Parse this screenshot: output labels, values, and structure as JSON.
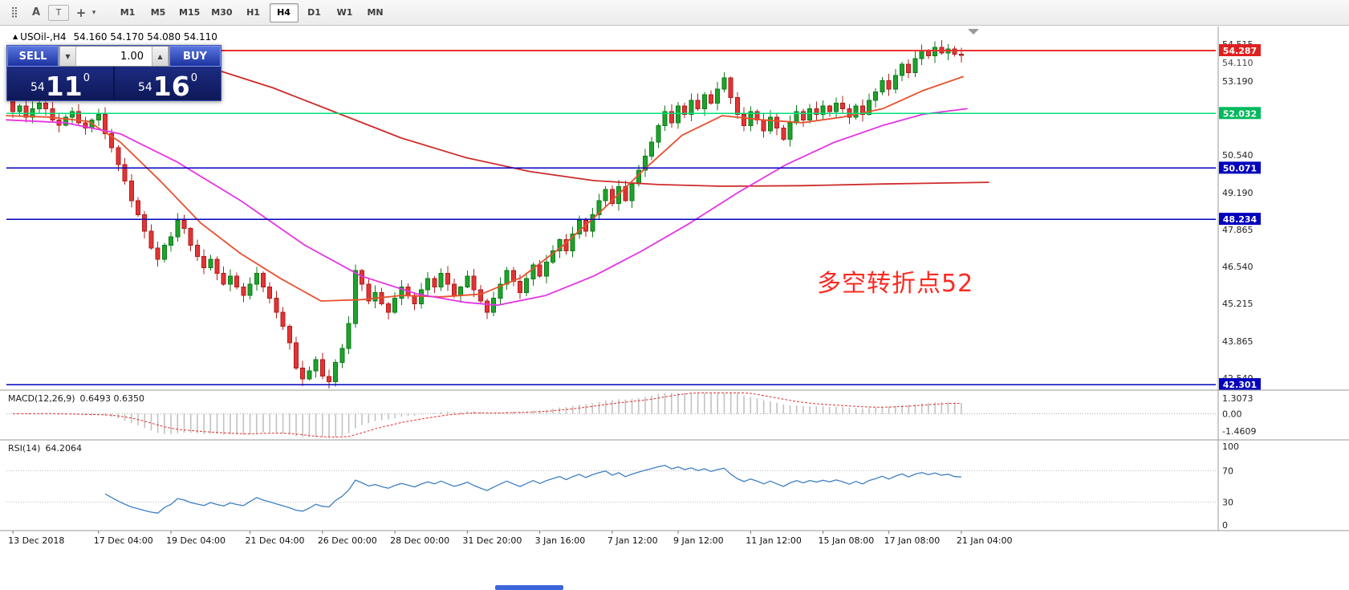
{
  "toolbar": {
    "icons": [
      {
        "name": "indicators-grid-icon",
        "glyph": "⣿"
      },
      {
        "name": "text-label-icon",
        "glyph": "A"
      },
      {
        "name": "text-box-icon",
        "glyph": "T"
      },
      {
        "name": "crosshair-icon",
        "glyph": "+"
      },
      {
        "name": "chevron-down-icon",
        "glyph": "▾"
      }
    ],
    "timeframes": [
      "M1",
      "M5",
      "M15",
      "M30",
      "H1",
      "H4",
      "D1",
      "W1",
      "MN"
    ],
    "active_timeframe": "H4"
  },
  "trade_panel": {
    "sell_label": "SELL",
    "buy_label": "BUY",
    "volume": "1.00",
    "spinner_down": "▼",
    "spinner_up": "▲",
    "sell_price": {
      "prefix": "54",
      "big": "11",
      "sup": "0"
    },
    "buy_price": {
      "prefix": "54",
      "big": "16",
      "sup": "0"
    }
  },
  "chart_data": {
    "type": "candlestick",
    "title": "USOil-,H4",
    "title_triangle": "▲",
    "ohlc_text": "54.160 54.170 54.080 54.110",
    "annotation": {
      "text": "多空转折点52",
      "color": "#fb2a22"
    },
    "bull_color": "#1fa32b",
    "bull_stroke": "#0c7a18",
    "bear_color": "#e23535",
    "bear_stroke": "#b01c1c",
    "closes": [
      52.1,
      52.3,
      51.9,
      52.2,
      52.4,
      52.2,
      51.8,
      51.6,
      51.9,
      52.1,
      51.7,
      51.5,
      51.8,
      52.0,
      51.3,
      50.8,
      50.2,
      49.6,
      48.9,
      48.4,
      47.8,
      47.2,
      46.8,
      47.3,
      47.6,
      48.2,
      47.9,
      47.3,
      46.9,
      46.5,
      46.8,
      46.3,
      45.9,
      46.2,
      45.8,
      45.5,
      45.9,
      46.3,
      45.8,
      45.4,
      44.9,
      44.4,
      43.8,
      42.9,
      42.5,
      42.8,
      43.2,
      42.6,
      42.4,
      43.1,
      43.6,
      44.5,
      46.4,
      45.9,
      45.3,
      45.6,
      45.2,
      44.9,
      45.4,
      45.8,
      45.5,
      45.2,
      45.7,
      46.1,
      45.8,
      46.3,
      45.9,
      45.5,
      45.8,
      46.2,
      45.7,
      45.3,
      44.9,
      45.4,
      45.9,
      46.4,
      46.0,
      45.6,
      46.1,
      46.6,
      46.2,
      46.7,
      47.1,
      47.5,
      47.1,
      47.7,
      48.2,
      47.8,
      48.4,
      48.9,
      49.3,
      48.8,
      49.4,
      48.9,
      49.5,
      50.0,
      50.5,
      51.0,
      51.6,
      52.1,
      51.7,
      52.3,
      52.0,
      52.5,
      52.2,
      52.7,
      52.4,
      52.9,
      53.3,
      52.6,
      52.0,
      51.6,
      52.1,
      51.8,
      51.4,
      51.9,
      51.5,
      51.1,
      51.7,
      52.1,
      51.8,
      52.2,
      52.0,
      52.3,
      52.1,
      52.4,
      52.2,
      51.9,
      52.3,
      52.0,
      52.5,
      52.8,
      53.2,
      52.9,
      53.4,
      53.8,
      53.5,
      54.0,
      54.3,
      54.1,
      54.4,
      54.2,
      54.35,
      54.15,
      54.11
    ],
    "y_axis": {
      "min": 42.19,
      "max": 55.15,
      "ticks": [
        54.515,
        53.19,
        50.54,
        49.19,
        47.865,
        46.54,
        45.215,
        43.865,
        42.54
      ]
    },
    "current_price_label": "54.110",
    "hlines": [
      {
        "price": 54.287,
        "color": "#e8312e",
        "badge": "#e02020",
        "label": "54.287"
      },
      {
        "price": 52.032,
        "color": "#00e17a",
        "badge": "#00b85c",
        "label": "52.032"
      },
      {
        "price": 50.071,
        "color": "#0202bd",
        "badge": "#0202bd",
        "label": "50.071"
      },
      {
        "price": 48.234,
        "color": "#0202bd",
        "badge": "#0202bd",
        "label": "48.234"
      },
      {
        "price": 42.301,
        "color": "#0202bd",
        "badge": "#0202bd",
        "label": "42.301"
      }
    ],
    "ma_lines": [
      {
        "name": "ma-slow-red",
        "color": "#cf2b2b",
        "points": [
          [
            275,
            53.55
          ],
          [
            340,
            52.95
          ],
          [
            420,
            52.05
          ],
          [
            500,
            51.15
          ],
          [
            580,
            50.45
          ],
          [
            660,
            49.95
          ],
          [
            740,
            49.62
          ],
          [
            820,
            49.48
          ],
          [
            900,
            49.42
          ],
          [
            1000,
            49.44
          ],
          [
            1100,
            49.5
          ],
          [
            1232,
            49.56
          ]
        ]
      },
      {
        "name": "ma-fast-orange",
        "color": "#e8512e",
        "points": [
          [
            8,
            51.95
          ],
          [
            60,
            51.9
          ],
          [
            110,
            51.75
          ],
          [
            150,
            51.0
          ],
          [
            200,
            49.6
          ],
          [
            250,
            48.1
          ],
          [
            300,
            47.0
          ],
          [
            350,
            46.1
          ],
          [
            400,
            45.3
          ],
          [
            450,
            45.35
          ],
          [
            500,
            45.5
          ],
          [
            550,
            45.45
          ],
          [
            600,
            45.55
          ],
          [
            650,
            46.15
          ],
          [
            700,
            47.25
          ],
          [
            750,
            48.55
          ],
          [
            800,
            49.95
          ],
          [
            850,
            51.25
          ],
          [
            900,
            51.95
          ],
          [
            950,
            51.8
          ],
          [
            1000,
            51.7
          ],
          [
            1050,
            51.9
          ],
          [
            1100,
            52.2
          ],
          [
            1150,
            52.85
          ],
          [
            1200,
            53.35
          ]
        ]
      },
      {
        "name": "ma-magenta",
        "color": "#e434e4",
        "points": [
          [
            8,
            51.8
          ],
          [
            80,
            51.7
          ],
          [
            150,
            51.3
          ],
          [
            220,
            50.3
          ],
          [
            300,
            48.9
          ],
          [
            380,
            47.3
          ],
          [
            450,
            46.2
          ],
          [
            520,
            45.55
          ],
          [
            580,
            45.25
          ],
          [
            620,
            45.15
          ],
          [
            680,
            45.5
          ],
          [
            740,
            46.2
          ],
          [
            800,
            47.1
          ],
          [
            860,
            48.1
          ],
          [
            920,
            49.2
          ],
          [
            980,
            50.2
          ],
          [
            1040,
            51.0
          ],
          [
            1100,
            51.6
          ],
          [
            1150,
            52.0
          ],
          [
            1205,
            52.2
          ]
        ]
      }
    ],
    "x_labels": [
      {
        "text": "13 Dec 2018",
        "i": 0
      },
      {
        "text": "17 Dec 04:00",
        "i": 13
      },
      {
        "text": "19 Dec 04:00",
        "i": 24
      },
      {
        "text": "21 Dec 04:00",
        "i": 36
      },
      {
        "text": "26 Dec 00:00",
        "i": 47
      },
      {
        "text": "28 Dec 00:00",
        "i": 58
      },
      {
        "text": "31 Dec 20:00",
        "i": 69
      },
      {
        "text": "3 Jan 16:00",
        "i": 80
      },
      {
        "text": "7 Jan 12:00",
        "i": 91
      },
      {
        "text": "9 Jan 12:00",
        "i": 101
      },
      {
        "text": "11 Jan 12:00",
        "i": 112
      },
      {
        "text": "15 Jan 08:00",
        "i": 123
      },
      {
        "text": "17 Jan 08:00",
        "i": 133
      },
      {
        "text": "21 Jan 04:00",
        "i": 144
      }
    ],
    "macd": {
      "label": "MACD(12,26,9)",
      "values_text": "0.6493 0.6350",
      "scale": [
        "1.3073",
        "0.00",
        "-1.4609"
      ],
      "range": [
        -1.4609,
        1.3073
      ],
      "hist_color": "#c2c2c2",
      "signal_color": "#e03333"
    },
    "rsi": {
      "label": "RSI(14)",
      "value_text": "64.2064",
      "scale": [
        "100",
        "70",
        "30",
        "0"
      ],
      "levels": [
        70,
        30
      ],
      "line_color": "#3f7fc1"
    }
  }
}
